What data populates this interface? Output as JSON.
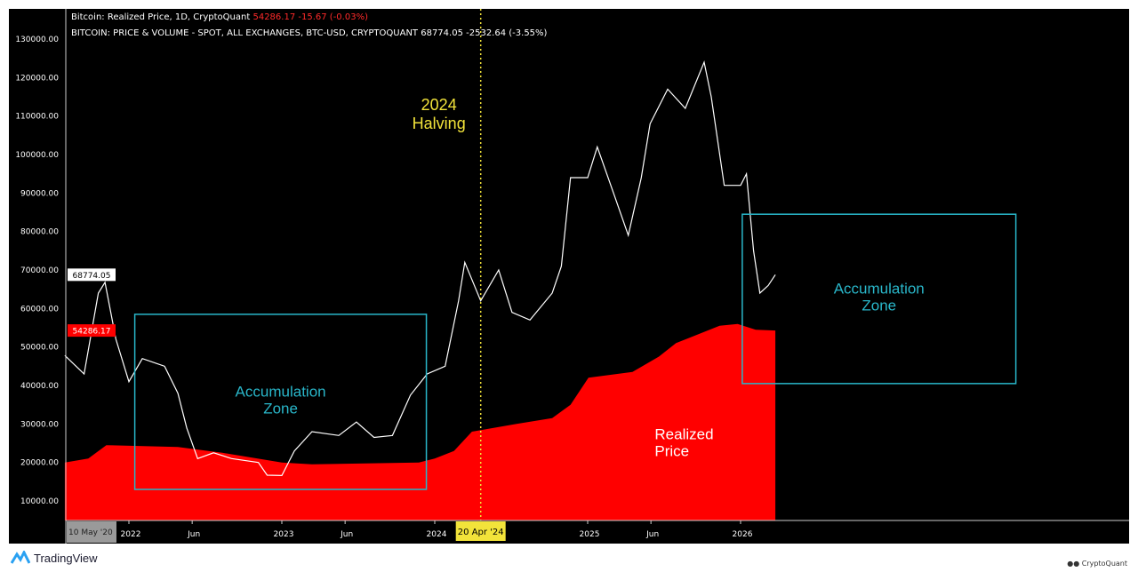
{
  "legend": {
    "line1": {
      "name": "Bitcoin: Realized Price, 1D, CryptoQuant",
      "value": "54286.17",
      "change": "-15.67 (-0.03%)"
    },
    "line2": {
      "name": "BITCOIN: PRICE & VOLUME - SPOT, ALL EXCHANGES, BTC-USD, CRYPTOQUANT",
      "value": "68774.05",
      "change": "-2532.64 (-3.55%)"
    }
  },
  "branding": {
    "tradingview": "TradingView",
    "cryptoquant": "CryptoQuant"
  },
  "colors": {
    "background": "#000000",
    "price": "#ffffff",
    "realized": "#ff0000",
    "box": "#29b6c9",
    "halving": "#f2e33a"
  },
  "chart_data": {
    "type": "line",
    "title": "",
    "xlabel": "",
    "ylabel": "",
    "ylim": [
      5000,
      135000
    ],
    "xlim": [
      "2021-08-01",
      "2028-10-01"
    ],
    "grid": false,
    "y_ticks": [
      "10000.00",
      "20000.00",
      "30000.00",
      "40000.00",
      "50000.00",
      "60000.00",
      "70000.00",
      "80000.00",
      "90000.00",
      "100000.00",
      "110000.00",
      "120000.00",
      "130000.00"
    ],
    "x_ticks": [
      {
        "label": "2022",
        "date": "2022-01-01"
      },
      {
        "label": "Jun",
        "date": "2022-06-01"
      },
      {
        "label": "2023",
        "date": "2023-01-01"
      },
      {
        "label": "Jun",
        "date": "2023-06-01"
      },
      {
        "label": "2024",
        "date": "2024-01-01"
      },
      {
        "label": "2025",
        "date": "2025-01-01"
      },
      {
        "label": "Jun",
        "date": "2025-06-01"
      },
      {
        "label": "2026",
        "date": "2026-01-01"
      }
    ],
    "x_start_label": "10 May '20",
    "series": [
      {
        "name": "BITCOIN: PRICE & VOLUME - SPOT, ALL EXCHANGES, BTC-USD, CRYPTOQUANT",
        "type": "line",
        "color": "#ffffff",
        "points": [
          [
            "2021-08-01",
            47800
          ],
          [
            "2021-09-16",
            43000
          ],
          [
            "2021-10-20",
            64000
          ],
          [
            "2021-11-05",
            66800
          ],
          [
            "2021-12-01",
            52000
          ],
          [
            "2022-01-01",
            41000
          ],
          [
            "2022-02-02",
            47000
          ],
          [
            "2022-03-27",
            45000
          ],
          [
            "2022-04-28",
            38000
          ],
          [
            "2022-05-19",
            29000
          ],
          [
            "2022-06-14",
            21000
          ],
          [
            "2022-07-22",
            22500
          ],
          [
            "2022-09-03",
            21000
          ],
          [
            "2022-11-06",
            20000
          ],
          [
            "2022-11-27",
            16700
          ],
          [
            "2023-01-01",
            16600
          ],
          [
            "2023-01-31",
            23000
          ],
          [
            "2023-03-14",
            28000
          ],
          [
            "2023-05-17",
            27000
          ],
          [
            "2023-06-28",
            30500
          ],
          [
            "2023-08-09",
            26500
          ],
          [
            "2023-09-22",
            27000
          ],
          [
            "2023-11-04",
            37500
          ],
          [
            "2023-12-14",
            43000
          ],
          [
            "2024-01-26",
            45000
          ],
          [
            "2024-02-27",
            62000
          ],
          [
            "2024-03-13",
            72000
          ],
          [
            "2024-04-20",
            62000
          ],
          [
            "2024-06-02",
            70000
          ],
          [
            "2024-07-04",
            59000
          ],
          [
            "2024-08-16",
            57000
          ],
          [
            "2024-10-08",
            64000
          ],
          [
            "2024-10-30",
            71000
          ],
          [
            "2024-11-21",
            94000
          ],
          [
            "2025-01-01",
            94000
          ],
          [
            "2025-01-24",
            102000
          ],
          [
            "2025-03-07",
            89000
          ],
          [
            "2025-04-08",
            79000
          ],
          [
            "2025-05-09",
            94000
          ],
          [
            "2025-05-30",
            108000
          ],
          [
            "2025-07-11",
            117000
          ],
          [
            "2025-08-22",
            112000
          ],
          [
            "2025-10-06",
            124000
          ],
          [
            "2025-10-23",
            115000
          ],
          [
            "2025-11-23",
            92000
          ],
          [
            "2026-01-01",
            92000
          ],
          [
            "2026-01-15",
            95000
          ],
          [
            "2026-02-01",
            75000
          ],
          [
            "2026-02-16",
            64000
          ],
          [
            "2026-03-08",
            66000
          ],
          [
            "2026-03-25",
            68774.05
          ]
        ]
      },
      {
        "name": "Bitcoin: Realized Price, 1D, CryptoQuant",
        "type": "area",
        "color": "#ff0000",
        "points": [
          [
            "2021-08-01",
            20000
          ],
          [
            "2021-09-26",
            21000
          ],
          [
            "2021-11-08",
            24500
          ],
          [
            "2022-04-28",
            24000
          ],
          [
            "2022-08-12",
            22500
          ],
          [
            "2023-01-01",
            20000
          ],
          [
            "2023-03-14",
            19500
          ],
          [
            "2023-11-24",
            20000
          ],
          [
            "2024-01-01",
            21000
          ],
          [
            "2024-02-16",
            23000
          ],
          [
            "2024-03-30",
            28000
          ],
          [
            "2024-07-15",
            30000
          ],
          [
            "2024-10-08",
            31500
          ],
          [
            "2024-11-21",
            35000
          ],
          [
            "2025-01-03",
            42000
          ],
          [
            "2025-04-18",
            43500
          ],
          [
            "2025-06-20",
            47500
          ],
          [
            "2025-07-31",
            51000
          ],
          [
            "2025-11-12",
            55500
          ],
          [
            "2025-12-25",
            56000
          ],
          [
            "2026-02-06",
            54500
          ],
          [
            "2026-03-25",
            54286.17
          ]
        ]
      }
    ],
    "price_labels": [
      {
        "value": "68774.05",
        "color": "#ffffff"
      },
      {
        "value": "54286.17",
        "color": "#ff0000"
      }
    ],
    "annotations": [
      {
        "type": "vline",
        "date": "2024-04-20",
        "label": "2024\nHalving",
        "axis_label": "20 Apr '24"
      },
      {
        "type": "box",
        "label": "Accumulation\nZone",
        "x0": "2022-01-15",
        "x1": "2023-12-12",
        "y0": 13000,
        "y1": 58500
      },
      {
        "type": "box",
        "label": "Accumulation\nZone",
        "x0": "2026-01-05",
        "x1": "2027-10-20",
        "y0": 40500,
        "y1": 84500
      },
      {
        "type": "text",
        "label": "Realized\nPrice",
        "date": "2025-06-10",
        "value": 27000
      }
    ]
  }
}
